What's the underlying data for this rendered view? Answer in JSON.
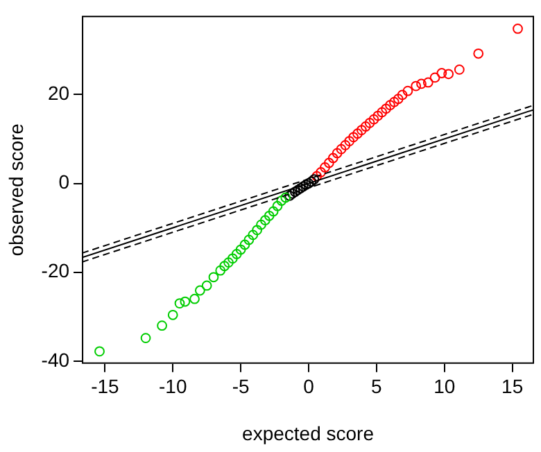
{
  "chart_data": {
    "type": "scatter",
    "xlabel": "expected score",
    "ylabel": "observed score",
    "xlim": [
      -16.7,
      16.6
    ],
    "ylim": [
      -40.6,
      37.7
    ],
    "xticks": [
      -15,
      -10,
      -5,
      0,
      5,
      10,
      15
    ],
    "yticks": [
      -40,
      -20,
      0,
      20
    ],
    "grid": false,
    "legend": false,
    "marker": "circle",
    "series": [
      {
        "color": "#00cd00",
        "x": [
          -1.7,
          -2.0,
          -2.3,
          -2.6,
          -2.9,
          -3.2,
          -3.5,
          -3.8,
          -4.1,
          -4.4,
          -4.7,
          -5.0,
          -5.3,
          -5.6,
          -5.9,
          -6.2,
          -6.5,
          -7.0,
          -7.5,
          -8.0,
          -8.4,
          -9.1,
          -9.5,
          -10.0,
          -10.8,
          -12.0,
          -15.4
        ],
        "values": [
          -3.2,
          -3.9,
          -5.1,
          -6.3,
          -7.3,
          -8.3,
          -9.3,
          -10.5,
          -11.6,
          -12.7,
          -13.8,
          -14.9,
          -15.9,
          -16.9,
          -17.8,
          -18.6,
          -19.6,
          -21.1,
          -23.0,
          -24.1,
          -26.0,
          -26.6,
          -27.0,
          -29.6,
          -32.0,
          -34.8,
          -37.8
        ]
      },
      {
        "color": "#000000",
        "x": [
          -1.4,
          -1.2,
          -1.0,
          -0.8,
          -0.6,
          -0.4,
          -0.2,
          0,
          0.2,
          0.4
        ],
        "values": [
          -2.8,
          -2.3,
          -1.9,
          -1.5,
          -1.1,
          -0.7,
          -0.3,
          0,
          0.4,
          0.9
        ]
      },
      {
        "color": "#ff0000",
        "x": [
          0.6,
          0.9,
          1.2,
          1.5,
          1.8,
          2.1,
          2.4,
          2.7,
          3.0,
          3.3,
          3.6,
          3.9,
          4.2,
          4.5,
          4.8,
          5.1,
          5.4,
          5.7,
          6.0,
          6.3,
          6.6,
          6.9,
          7.3,
          7.9,
          8.3,
          8.8,
          9.3,
          9.8,
          10.3,
          11.1,
          12.5,
          15.4
        ],
        "values": [
          1.6,
          2.5,
          3.6,
          4.6,
          5.7,
          6.8,
          7.7,
          8.6,
          9.5,
          10.4,
          11.2,
          12.0,
          12.8,
          13.6,
          14.4,
          15.2,
          16.0,
          16.8,
          17.6,
          18.3,
          19.0,
          19.9,
          20.8,
          21.9,
          22.4,
          22.7,
          23.8,
          24.8,
          24.6,
          25.6,
          29.2,
          34.8
        ]
      },
      {
        "type": "line",
        "color": "#000000",
        "line_style": "solid",
        "marker": "none",
        "x": [
          -16.7,
          16.6
        ],
        "values": [
          -16.7,
          16.6
        ]
      },
      {
        "type": "line",
        "color": "#000000",
        "line_style": "dashed",
        "marker": "none",
        "x": [
          -16.7,
          16.6
        ],
        "values": [
          -15.7,
          17.6
        ]
      },
      {
        "type": "line",
        "color": "#000000",
        "line_style": "dashed",
        "marker": "none",
        "x": [
          -16.7,
          16.6
        ],
        "values": [
          -17.7,
          15.6
        ]
      }
    ]
  }
}
